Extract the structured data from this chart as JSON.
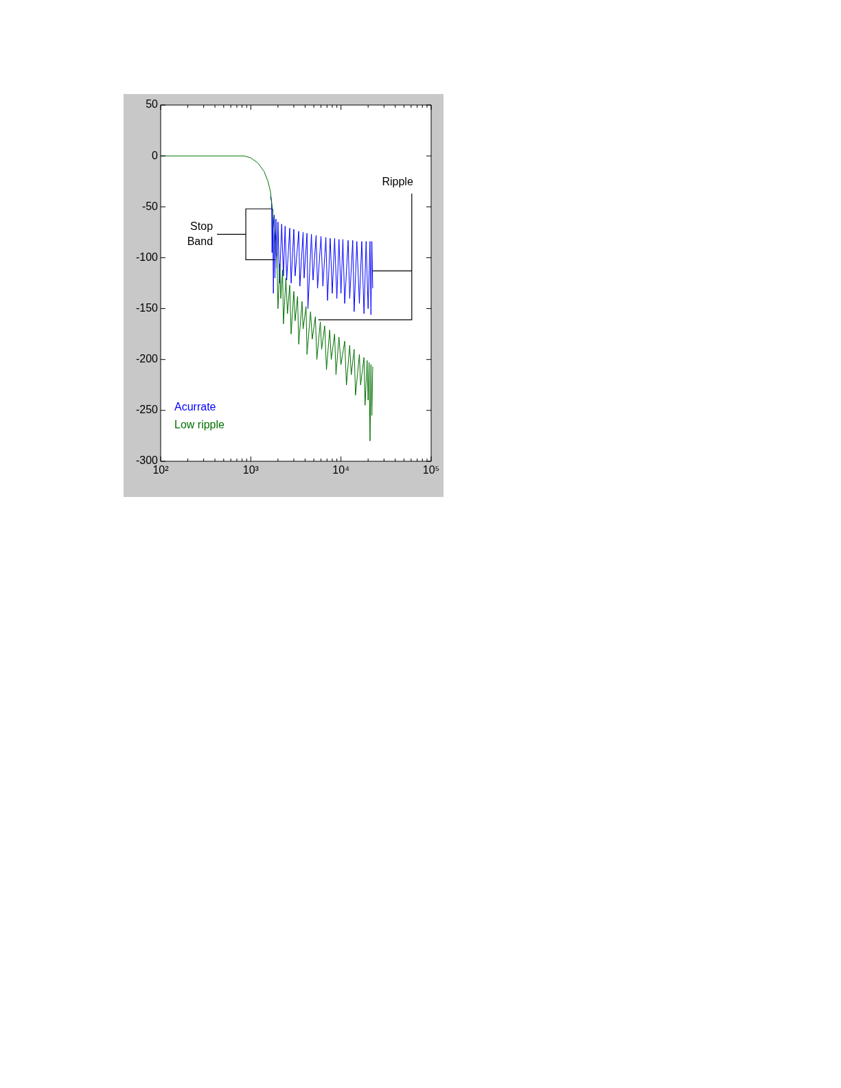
{
  "chart_data": {
    "type": "line",
    "log": "x",
    "grid": false,
    "legend": "bottom left",
    "marker": "none",
    "line_style": "solid",
    "xlim": [
      100,
      100000
    ],
    "ylim": [
      -300,
      50
    ],
    "xticks": [
      {
        "value": 100,
        "label": "10²"
      },
      {
        "value": 200,
        "label": null
      },
      {
        "value": 300,
        "label": null
      },
      {
        "value": 400,
        "label": null
      },
      {
        "value": 500,
        "label": null
      },
      {
        "value": 600,
        "label": null
      },
      {
        "value": 700,
        "label": null
      },
      {
        "value": 800,
        "label": null
      },
      {
        "value": 900,
        "label": null
      },
      {
        "value": 1000,
        "label": "10³"
      },
      {
        "value": 2000,
        "label": null
      },
      {
        "value": 3000,
        "label": null
      },
      {
        "value": 4000,
        "label": null
      },
      {
        "value": 5000,
        "label": null
      },
      {
        "value": 6000,
        "label": null
      },
      {
        "value": 7000,
        "label": null
      },
      {
        "value": 8000,
        "label": null
      },
      {
        "value": 9000,
        "label": null
      },
      {
        "value": 10000,
        "label": "10⁴"
      },
      {
        "value": 20000,
        "label": null
      },
      {
        "value": 30000,
        "label": null
      },
      {
        "value": 40000,
        "label": null
      },
      {
        "value": 50000,
        "label": null
      },
      {
        "value": 60000,
        "label": null
      },
      {
        "value": 70000,
        "label": null
      },
      {
        "value": 80000,
        "label": null
      },
      {
        "value": 90000,
        "label": null
      },
      {
        "value": 100000,
        "label": "10⁵"
      }
    ],
    "yticks": [
      -300,
      -250,
      -200,
      -150,
      -100,
      -50,
      0,
      50
    ],
    "annotations": [
      "Stop\nBand",
      "Ripple"
    ],
    "series": [
      {
        "name": "Acurrate",
        "color": "#0000ff",
        "x": [
          1650,
          1700,
          1720,
          1750,
          1780,
          1820,
          1850,
          1900,
          1950,
          2000,
          2080,
          2200,
          2300,
          2400,
          2500,
          2700,
          2800,
          3000,
          3100,
          3400,
          3500,
          3800,
          3900,
          4200,
          4300,
          4700,
          4900,
          5300,
          5500,
          6000,
          6300,
          6800,
          7100,
          7600,
          8000,
          8500,
          9000,
          9500,
          10000,
          10500,
          11000,
          12000,
          12500,
          13500,
          14000,
          15000,
          16000,
          17000,
          18000,
          19000,
          20000,
          21000,
          21500,
          22000,
          22500
        ],
        "values": [
          -40,
          -45,
          -95,
          -52,
          -135,
          -58,
          -120,
          -62,
          -110,
          -65,
          -125,
          -67,
          -118,
          -69,
          -122,
          -71,
          -125,
          -72,
          -118,
          -74,
          -128,
          -75,
          -120,
          -76,
          -150,
          -77,
          -122,
          -78,
          -130,
          -79,
          -128,
          -80,
          -142,
          -81,
          -135,
          -81,
          -140,
          -82,
          -135,
          -82,
          -145,
          -83,
          -140,
          -83,
          -153,
          -84,
          -145,
          -84,
          -155,
          -84,
          -150,
          -84,
          -156,
          -84,
          -130
        ]
      },
      {
        "name": "Low ripple",
        "color": "#007000",
        "x": [
          100,
          300,
          600,
          850,
          1000,
          1200,
          1400,
          1550,
          1650,
          1750,
          1850,
          1900,
          1950,
          2000,
          2100,
          2150,
          2250,
          2300,
          2450,
          2550,
          2700,
          2800,
          3000,
          3100,
          3300,
          3400,
          3700,
          3800,
          4100,
          4200,
          4600,
          4800,
          5200,
          5400,
          5900,
          6100,
          6600,
          6900,
          7500,
          7800,
          8500,
          8800,
          9500,
          10000,
          11000,
          11500,
          12500,
          13000,
          14000,
          14500,
          16000,
          16500,
          18000,
          18500,
          19500,
          20000,
          20500,
          21000,
          21500,
          22000,
          22500
        ],
        "values": [
          0,
          0,
          0,
          0,
          -2,
          -7,
          -15,
          -25,
          -35,
          -55,
          -80,
          -95,
          -100,
          -150,
          -106,
          -140,
          -112,
          -165,
          -120,
          -155,
          -127,
          -175,
          -133,
          -162,
          -138,
          -185,
          -143,
          -170,
          -148,
          -195,
          -153,
          -180,
          -158,
          -200,
          -163,
          -190,
          -167,
          -210,
          -171,
          -200,
          -175,
          -215,
          -178,
          -205,
          -182,
          -225,
          -186,
          -215,
          -190,
          -235,
          -195,
          -225,
          -198,
          -245,
          -201,
          -240,
          -203,
          -280,
          -205,
          -255,
          -207
        ]
      }
    ]
  }
}
